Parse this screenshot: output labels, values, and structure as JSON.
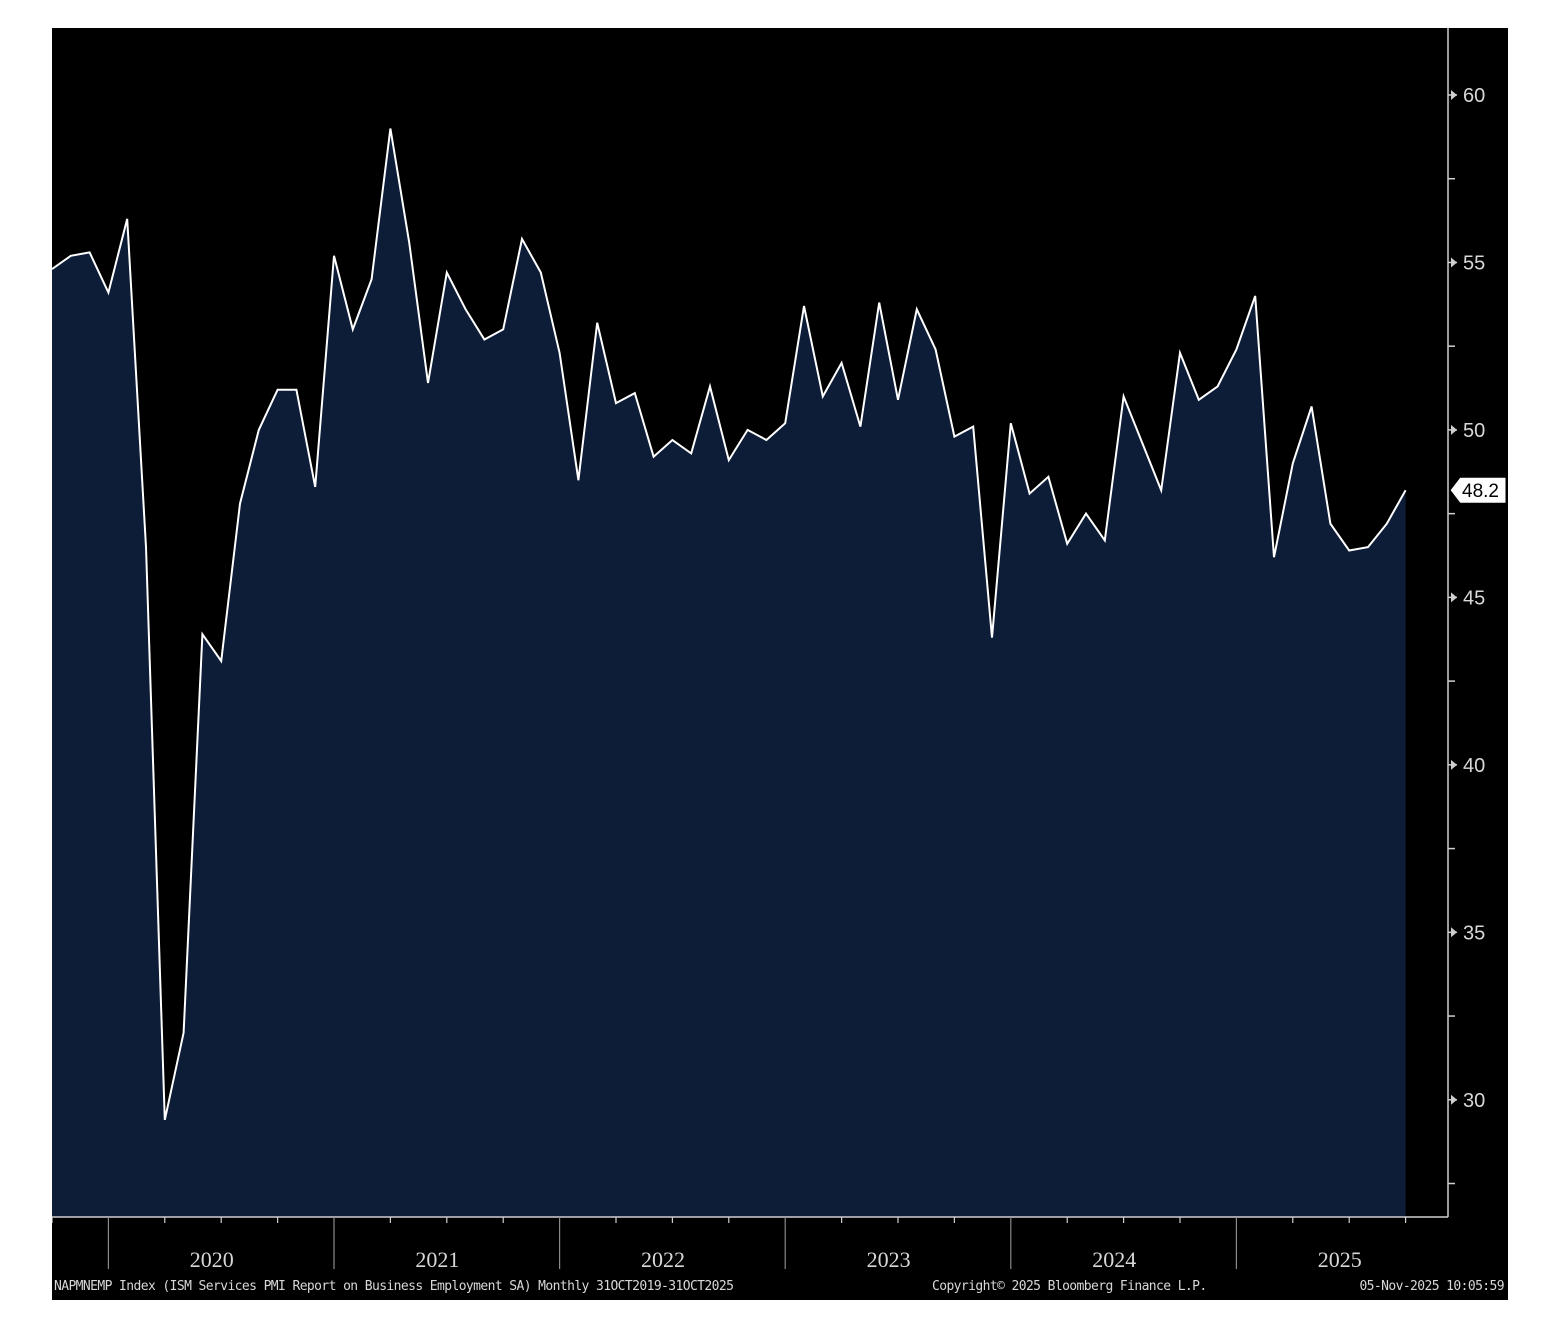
{
  "chart_data": {
    "type": "area",
    "colors": {
      "background": "#000000",
      "fill": "#0d1d38",
      "line": "#ffffff",
      "axis": "#cfcfcf"
    },
    "ylim": [
      26.5,
      62
    ],
    "y_ticks": [
      30,
      35,
      40,
      45,
      50,
      55,
      60
    ],
    "year_labels": [
      "2020",
      "2021",
      "2022",
      "2023",
      "2024",
      "2025"
    ],
    "x_start": "2019-10",
    "last_value_label": "48.2",
    "values": [
      54.8,
      55.2,
      55.3,
      54.1,
      56.3,
      46.5,
      29.4,
      32.0,
      43.9,
      43.1,
      47.8,
      50.0,
      51.2,
      51.2,
      48.3,
      55.2,
      53.0,
      54.5,
      59.0,
      55.6,
      51.4,
      54.7,
      53.6,
      52.7,
      53.0,
      55.7,
      54.7,
      52.3,
      48.5,
      53.2,
      50.8,
      51.1,
      49.2,
      49.7,
      49.3,
      51.3,
      49.1,
      50.0,
      49.7,
      50.2,
      53.7,
      51.0,
      52.0,
      50.1,
      53.8,
      50.9,
      53.6,
      52.4,
      49.8,
      50.1,
      43.8,
      50.2,
      48.1,
      48.6,
      46.6,
      47.5,
      46.7,
      51.0,
      49.6,
      48.2,
      52.3,
      50.9,
      51.3,
      52.4,
      54.0,
      46.2,
      49.0,
      50.7,
      47.2,
      46.4,
      46.5,
      47.2,
      48.2
    ]
  },
  "footer": {
    "description": "NAPMNEMP Index (ISM Services PMI Report on Business Employment SA) Monthly 31OCT2019-31OCT2025",
    "copyright": "Copyright© 2025 Bloomberg Finance L.P.",
    "timestamp": "05-Nov-2025 10:05:59"
  }
}
